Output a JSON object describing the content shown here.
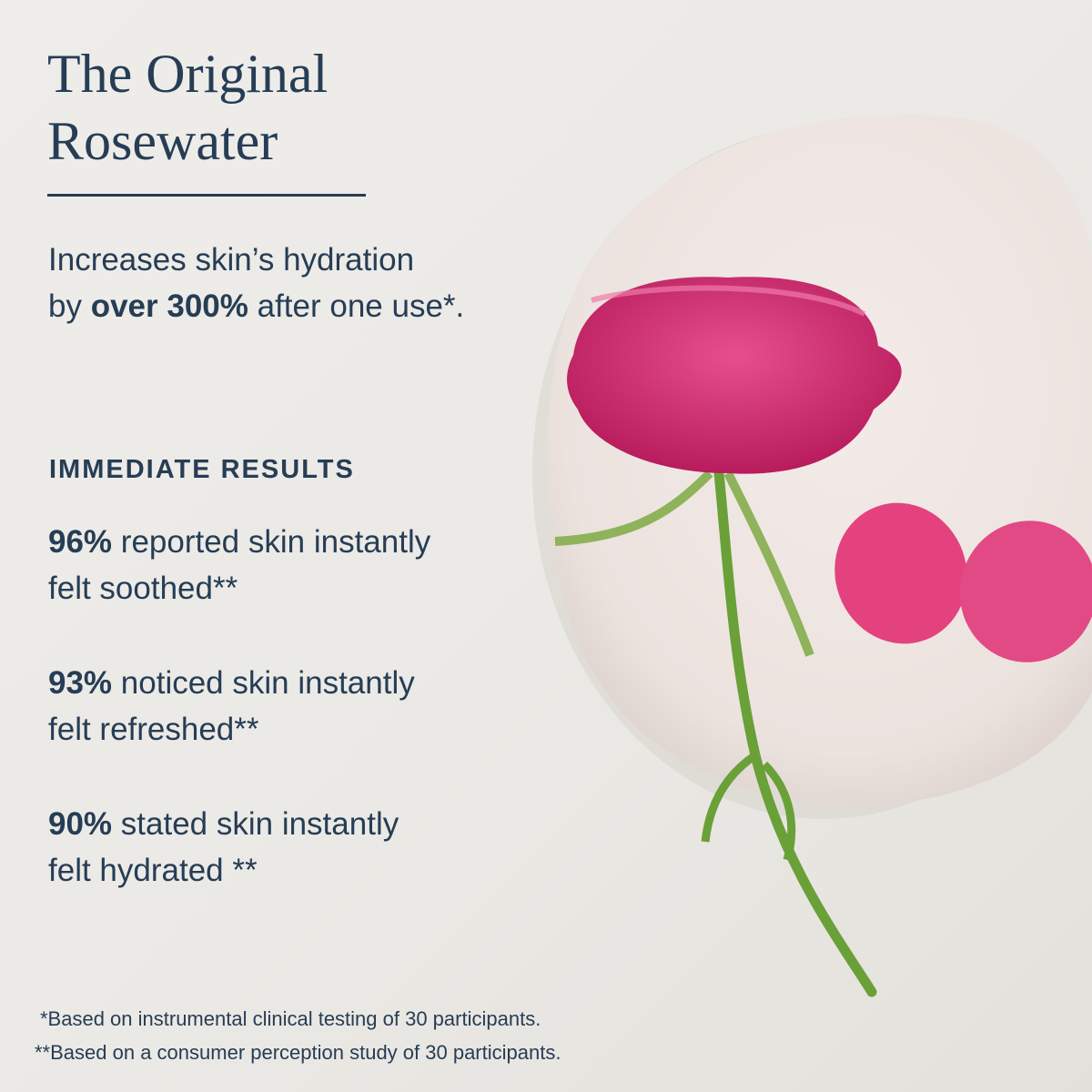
{
  "title_line1": "The Original",
  "title_line2": "Rosewater",
  "lead": {
    "line1": "Increases skin’s hydration",
    "prefix": "by ",
    "bold": "over 300%",
    "suffix": " after one use*."
  },
  "section_heading": "IMMEDIATE RESULTS",
  "stats": [
    {
      "value": "96%",
      "line1_rest": " reported skin instantly",
      "line2": "felt soothed**"
    },
    {
      "value": "93%",
      "line1_rest": " noticed skin instantly",
      "line2": "felt refreshed**"
    },
    {
      "value": "90%",
      "line1_rest": " stated skin instantly",
      "line2": "felt hydrated **"
    }
  ],
  "footnotes": [
    "*Based on instrumental clinical testing of 30 participants.",
    "**Based on a consumer perception study of 30 participants."
  ],
  "colors": {
    "text": "#263d55",
    "background": "#ebe9e5",
    "rose": "#d8286f",
    "stem": "#6aa038",
    "plate": "#efe6e2"
  }
}
